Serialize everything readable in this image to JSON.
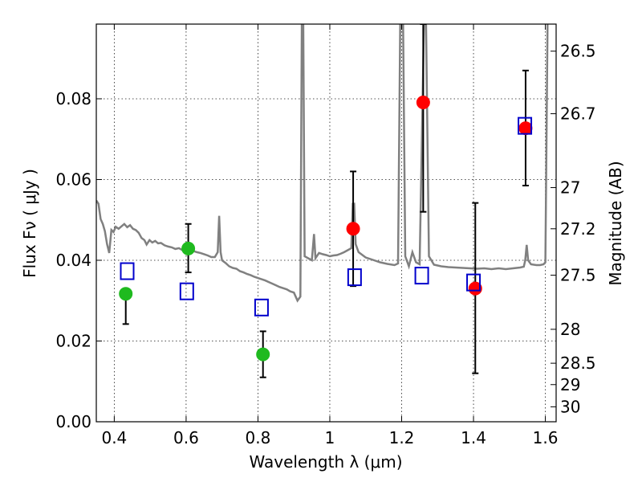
{
  "chart_data": {
    "type": "scatter",
    "title": "",
    "xlabel": "Wavelength  λ (μm)",
    "ylabel": "Flux  Fν  ( μJy )",
    "y2label": "Magnitude (AB)",
    "xlim": [
      0.35,
      1.63
    ],
    "ylim": [
      0.0,
      0.0985
    ],
    "grid": true,
    "x_ticks": [
      {
        "v": 0.4,
        "label": "0.4"
      },
      {
        "v": 0.6,
        "label": "0.6"
      },
      {
        "v": 0.8,
        "label": "0.8"
      },
      {
        "v": 1.0,
        "label": "1"
      },
      {
        "v": 1.2,
        "label": "1.2"
      },
      {
        "v": 1.4,
        "label": "1.4"
      },
      {
        "v": 1.6,
        "label": "1.6"
      }
    ],
    "y_ticks": [
      {
        "v": 0.0,
        "label": "0.00"
      },
      {
        "v": 0.02,
        "label": "0.02"
      },
      {
        "v": 0.04,
        "label": "0.04"
      },
      {
        "v": 0.06,
        "label": "0.06"
      },
      {
        "v": 0.08,
        "label": "0.08"
      }
    ],
    "y2_ticks": [
      {
        "flux": 0.0918,
        "label": "26.5"
      },
      {
        "flux": 0.0763,
        "label": "26.7"
      },
      {
        "flux": 0.058,
        "label": "27"
      },
      {
        "flux": 0.0478,
        "label": "27.2"
      },
      {
        "flux": 0.0363,
        "label": "27.5"
      },
      {
        "flux": 0.0229,
        "label": "28"
      },
      {
        "flux": 0.0145,
        "label": "28.5"
      },
      {
        "flux": 0.0092,
        "label": "29"
      },
      {
        "flux": 0.0037,
        "label": "30"
      }
    ],
    "series": [
      {
        "marker": "circle",
        "color": "#1fba1f",
        "points": [
          {
            "x": 0.432,
            "y": 0.0317,
            "ylo": 0.0242,
            "yhi": 0.0316
          },
          {
            "x": 0.606,
            "y": 0.0429,
            "ylo": 0.037,
            "yhi": 0.049
          },
          {
            "x": 0.814,
            "y": 0.0167,
            "ylo": 0.011,
            "yhi": 0.0224
          }
        ]
      },
      {
        "marker": "circle",
        "color": "#ff0000",
        "points": [
          {
            "x": 1.065,
            "y": 0.0478,
            "ylo": 0.0336,
            "yhi": 0.062
          },
          {
            "x": 1.26,
            "y": 0.0791,
            "ylo": 0.052,
            "yhi": 0.0985
          },
          {
            "x": 1.405,
            "y": 0.033,
            "ylo": 0.012,
            "yhi": 0.0542
          },
          {
            "x": 1.545,
            "y": 0.0727,
            "ylo": 0.0585,
            "yhi": 0.087
          }
        ]
      },
      {
        "marker": "square-open",
        "color": "#0000cc",
        "points": [
          {
            "x": 0.436,
            "y": 0.0373
          },
          {
            "x": 0.602,
            "y": 0.0323
          },
          {
            "x": 0.81,
            "y": 0.0283
          },
          {
            "x": 1.069,
            "y": 0.0358
          },
          {
            "x": 1.256,
            "y": 0.0362
          },
          {
            "x": 1.4,
            "y": 0.0345
          },
          {
            "x": 1.543,
            "y": 0.0733
          }
        ]
      }
    ],
    "template_color": "#808080",
    "template_spectrum": [
      [
        0.35,
        0.0548
      ],
      [
        0.356,
        0.054
      ],
      [
        0.362,
        0.0502
      ],
      [
        0.368,
        0.049
      ],
      [
        0.374,
        0.0472
      ],
      [
        0.38,
        0.044
      ],
      [
        0.386,
        0.0418
      ],
      [
        0.392,
        0.0475
      ],
      [
        0.398,
        0.047
      ],
      [
        0.404,
        0.0483
      ],
      [
        0.412,
        0.0478
      ],
      [
        0.42,
        0.0484
      ],
      [
        0.428,
        0.049
      ],
      [
        0.436,
        0.0482
      ],
      [
        0.444,
        0.0487
      ],
      [
        0.452,
        0.0478
      ],
      [
        0.46,
        0.0475
      ],
      [
        0.468,
        0.0468
      ],
      [
        0.476,
        0.0455
      ],
      [
        0.484,
        0.045
      ],
      [
        0.49,
        0.0439
      ],
      [
        0.498,
        0.045
      ],
      [
        0.506,
        0.0444
      ],
      [
        0.514,
        0.0448
      ],
      [
        0.522,
        0.0442
      ],
      [
        0.53,
        0.0443
      ],
      [
        0.54,
        0.0437
      ],
      [
        0.55,
        0.0434
      ],
      [
        0.56,
        0.0432
      ],
      [
        0.57,
        0.0428
      ],
      [
        0.58,
        0.043
      ],
      [
        0.59,
        0.0425
      ],
      [
        0.6,
        0.0427
      ],
      [
        0.61,
        0.0425
      ],
      [
        0.62,
        0.0423
      ],
      [
        0.63,
        0.042
      ],
      [
        0.64,
        0.0418
      ],
      [
        0.65,
        0.0415
      ],
      [
        0.66,
        0.0412
      ],
      [
        0.67,
        0.0408
      ],
      [
        0.68,
        0.0408
      ],
      [
        0.688,
        0.042
      ],
      [
        0.692,
        0.051
      ],
      [
        0.696,
        0.042
      ],
      [
        0.7,
        0.04
      ],
      [
        0.71,
        0.0393
      ],
      [
        0.72,
        0.0385
      ],
      [
        0.73,
        0.0381
      ],
      [
        0.74,
        0.0379
      ],
      [
        0.75,
        0.0373
      ],
      [
        0.76,
        0.037
      ],
      [
        0.77,
        0.0366
      ],
      [
        0.78,
        0.0363
      ],
      [
        0.79,
        0.0359
      ],
      [
        0.8,
        0.0356
      ],
      [
        0.81,
        0.0353
      ],
      [
        0.82,
        0.035
      ],
      [
        0.83,
        0.0346
      ],
      [
        0.84,
        0.0342
      ],
      [
        0.85,
        0.0338
      ],
      [
        0.86,
        0.0334
      ],
      [
        0.87,
        0.0331
      ],
      [
        0.88,
        0.0328
      ],
      [
        0.89,
        0.0323
      ],
      [
        0.9,
        0.032
      ],
      [
        0.91,
        0.03
      ],
      [
        0.918,
        0.031
      ],
      [
        0.922,
        0.0985
      ],
      [
        0.926,
        0.0985
      ],
      [
        0.93,
        0.041
      ],
      [
        0.94,
        0.0405
      ],
      [
        0.95,
        0.04
      ],
      [
        0.956,
        0.0465
      ],
      [
        0.96,
        0.0405
      ],
      [
        0.97,
        0.0418
      ],
      [
        0.98,
        0.0415
      ],
      [
        0.99,
        0.0413
      ],
      [
        1.0,
        0.041
      ],
      [
        1.01,
        0.0412
      ],
      [
        1.02,
        0.0413
      ],
      [
        1.03,
        0.0416
      ],
      [
        1.04,
        0.042
      ],
      [
        1.05,
        0.0425
      ],
      [
        1.06,
        0.043
      ],
      [
        1.064,
        0.054
      ],
      [
        1.068,
        0.054
      ],
      [
        1.072,
        0.044
      ],
      [
        1.08,
        0.042
      ],
      [
        1.1,
        0.0407
      ],
      [
        1.12,
        0.0401
      ],
      [
        1.14,
        0.0395
      ],
      [
        1.16,
        0.0391
      ],
      [
        1.18,
        0.0388
      ],
      [
        1.19,
        0.0392
      ],
      [
        1.196,
        0.0985
      ],
      [
        1.204,
        0.0985
      ],
      [
        1.21,
        0.041
      ],
      [
        1.22,
        0.0385
      ],
      [
        1.23,
        0.042
      ],
      [
        1.24,
        0.0395
      ],
      [
        1.25,
        0.039
      ],
      [
        1.262,
        0.0985
      ],
      [
        1.268,
        0.0985
      ],
      [
        1.276,
        0.041
      ],
      [
        1.29,
        0.0389
      ],
      [
        1.31,
        0.0385
      ],
      [
        1.33,
        0.0383
      ],
      [
        1.35,
        0.0382
      ],
      [
        1.37,
        0.0381
      ],
      [
        1.39,
        0.038
      ],
      [
        1.41,
        0.0379
      ],
      [
        1.43,
        0.038
      ],
      [
        1.45,
        0.0378
      ],
      [
        1.47,
        0.038
      ],
      [
        1.49,
        0.0378
      ],
      [
        1.51,
        0.038
      ],
      [
        1.53,
        0.0382
      ],
      [
        1.54,
        0.0384
      ],
      [
        1.544,
        0.04
      ],
      [
        1.548,
        0.0438
      ],
      [
        1.552,
        0.04
      ],
      [
        1.56,
        0.039
      ],
      [
        1.575,
        0.0388
      ],
      [
        1.585,
        0.0388
      ],
      [
        1.595,
        0.039
      ],
      [
        1.6,
        0.0395
      ],
      [
        1.606,
        0.0985
      ]
    ]
  }
}
